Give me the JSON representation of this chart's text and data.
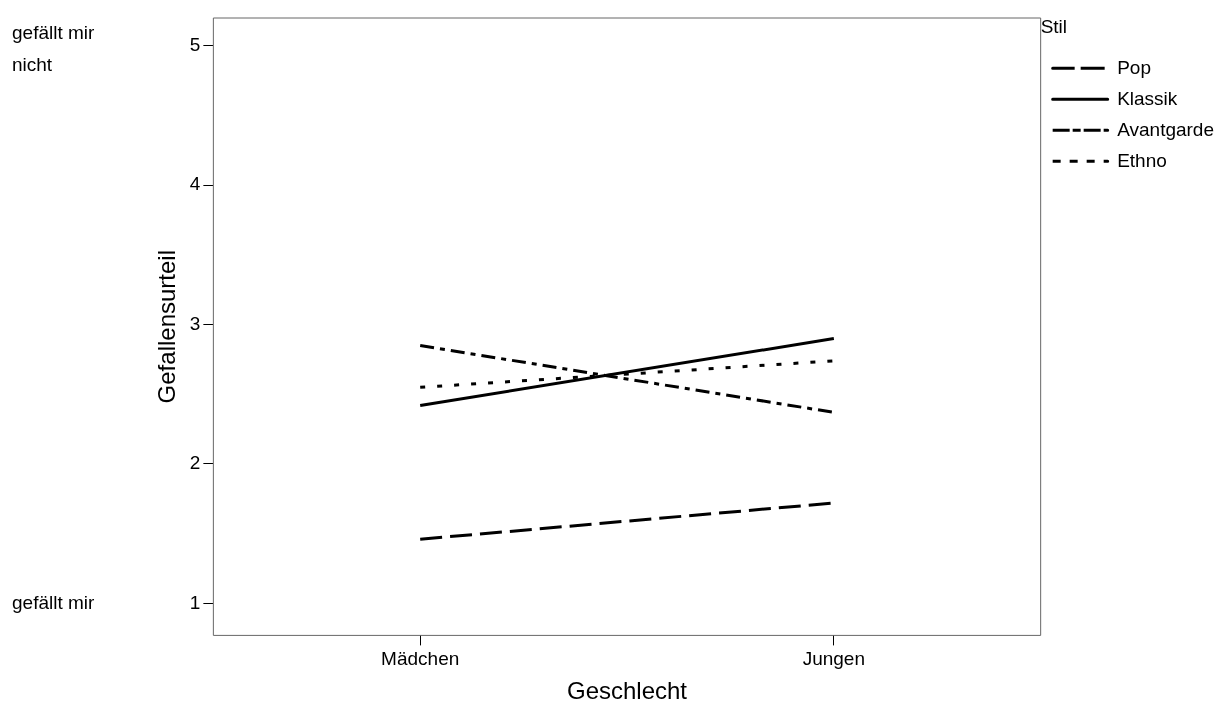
{
  "chart_data": {
    "type": "line",
    "xlabel": "Geschlecht",
    "ylabel": "Gefallensurteil",
    "legend_title": "Stil",
    "legend": "top right",
    "grid": false,
    "marker": "none",
    "categories": [
      "Mädchen",
      "Jungen"
    ],
    "ylim": [
      0.77,
      5.2
    ],
    "yticks": [
      1,
      2,
      3,
      4,
      5
    ],
    "annotations": [
      "gefällt mir nicht",
      "gefällt mir"
    ],
    "series": [
      {
        "name": "Pop",
        "color": "#000000",
        "line_style": "dashed",
        "values": [
          1.46,
          1.72
        ]
      },
      {
        "name": "Klassik",
        "color": "#000000",
        "line_style": "solid",
        "values": [
          2.42,
          2.9
        ]
      },
      {
        "name": "Avantgarde",
        "color": "#000000",
        "line_style": "dashdot",
        "values": [
          2.85,
          2.37
        ]
      },
      {
        "name": "Ethno",
        "color": "#000000",
        "line_style": "dotted",
        "values": [
          2.55,
          2.74
        ]
      }
    ]
  }
}
